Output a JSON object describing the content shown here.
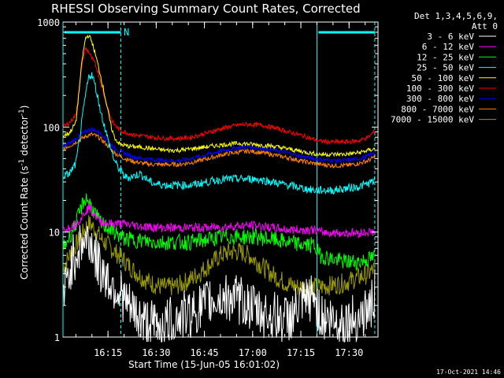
{
  "chart_data": {
    "type": "line",
    "title": "RHESSI Observing Summary Count Rates, Corrected",
    "xlabel": "Start Time (15-Jun-05 16:01:02)",
    "ylabel_prefix": "Corrected Count Rate (s",
    "ylabel_sup1": "-1",
    "ylabel_mid": " detector",
    "ylabel_sup2": "-1",
    "ylabel_suffix": ")",
    "x_range_min": [
      0,
      98
    ],
    "y_range_log": [
      1,
      1000
    ],
    "x_ticks": [
      {
        "value": 14,
        "label": "16:15"
      },
      {
        "value": 29,
        "label": "16:30"
      },
      {
        "value": 44,
        "label": "16:45"
      },
      {
        "value": 59,
        "label": "17:00"
      },
      {
        "value": 74,
        "label": "17:15"
      },
      {
        "value": 89,
        "label": "17:30"
      }
    ],
    "y_ticks": [
      {
        "value": 1,
        "label": "1"
      },
      {
        "value": 10,
        "label": "10"
      },
      {
        "value": 100,
        "label": "100"
      },
      {
        "value": 1000,
        "label": "1000"
      }
    ],
    "legend_header_1": "Det 1,3,4,5,6,9,",
    "legend_header_2": "Att 0",
    "annotations": {
      "night_start_marker": "N",
      "orbit_boundaries_min": [
        0,
        18,
        79,
        97
      ],
      "solid_boundary_style": [
        "solid",
        "dashed",
        "solid",
        "dashed"
      ],
      "bar_intervals_min": [
        [
          0,
          18
        ],
        [
          79,
          97
        ]
      ]
    },
    "series": [
      {
        "name": "3 - 6 keV",
        "color": "#ffffff",
        "x": [
          0,
          1,
          2,
          3,
          5,
          6,
          8,
          9,
          10,
          11,
          13,
          14,
          16,
          18,
          20,
          23,
          25,
          28,
          31,
          35,
          40,
          44,
          46,
          49,
          52,
          55,
          58,
          61,
          65,
          68,
          70,
          73,
          76,
          78,
          80,
          82,
          85,
          88,
          91,
          94,
          96,
          97
        ],
        "values": [
          2.5,
          3.0,
          4.2,
          5.5,
          7.0,
          8.0,
          8.5,
          7.5,
          6.0,
          4.8,
          4.0,
          3.5,
          3.0,
          2.6,
          2.0,
          1.6,
          1.4,
          1.3,
          1.3,
          1.5,
          1.7,
          2.0,
          2.2,
          2.3,
          2.4,
          2.2,
          2.0,
          1.7,
          1.6,
          1.5,
          1.5,
          1.8,
          2.2,
          2.5,
          1.6,
          1.5,
          1.4,
          1.4,
          1.5,
          1.7,
          2.0,
          2.6
        ]
      },
      {
        "name": "6 - 12 keV",
        "color": "#ff00ff",
        "x": [
          0,
          2,
          4,
          6,
          7,
          8,
          9,
          10,
          11,
          12,
          14,
          16,
          18,
          20,
          23,
          26,
          30,
          35,
          40,
          45,
          50,
          55,
          60,
          65,
          70,
          75,
          78,
          80,
          84,
          88,
          92,
          95,
          97
        ],
        "values": [
          10.5,
          11,
          12,
          14,
          16,
          17,
          16,
          14.5,
          13,
          12.5,
          12,
          12,
          12,
          11.8,
          11.5,
          11.2,
          11,
          11,
          11,
          11,
          11.2,
          11.5,
          11.5,
          11,
          10.5,
          10.5,
          10.5,
          10,
          9.8,
          9.8,
          9.8,
          10,
          10
        ]
      },
      {
        "name": "12 - 25 keV",
        "color": "#00ff00",
        "x": [
          0,
          2,
          4,
          6,
          7,
          8,
          9,
          10,
          11,
          12,
          14,
          16,
          18,
          20,
          24,
          28,
          32,
          36,
          40,
          45,
          50,
          55,
          60,
          65,
          70,
          75,
          78,
          80,
          84,
          88,
          92,
          95,
          97
        ],
        "values": [
          7,
          9,
          12,
          18,
          21,
          20,
          17,
          15,
          13,
          12,
          11,
          10,
          9,
          8.5,
          8.3,
          8,
          8,
          8,
          8,
          8.5,
          9,
          9,
          9,
          8.5,
          8,
          7.5,
          7.5,
          6,
          5.5,
          5.2,
          5.2,
          5.5,
          5.8
        ]
      },
      {
        "name": "25 - 50 keV",
        "color": "#00ffff",
        "x": [
          0,
          2,
          4,
          5,
          6,
          7,
          8,
          9,
          10,
          11,
          12,
          13,
          14,
          15,
          16,
          17,
          18,
          19,
          20,
          22,
          24,
          26,
          28,
          32,
          36,
          40,
          45,
          50,
          55,
          60,
          65,
          70,
          75,
          78,
          80,
          84,
          88,
          92,
          95,
          97
        ],
        "values": [
          34,
          36,
          45,
          70,
          120,
          200,
          300,
          320,
          250,
          180,
          130,
          100,
          75,
          60,
          48,
          42,
          38,
          34,
          33,
          34,
          36,
          32,
          29,
          28,
          28,
          28,
          30,
          32,
          32,
          32,
          30,
          28,
          26,
          25,
          25,
          25,
          26,
          27,
          29,
          31
        ]
      },
      {
        "name": "50 - 100 keV",
        "color": "#ffff00",
        "x": [
          0,
          2,
          4,
          5,
          6,
          7,
          8,
          9,
          10,
          11,
          12,
          13,
          14,
          15,
          16,
          17,
          18,
          20,
          22,
          25,
          28,
          32,
          36,
          40,
          45,
          50,
          55,
          60,
          65,
          70,
          75,
          78,
          80,
          84,
          88,
          92,
          95,
          97
        ],
        "values": [
          82,
          88,
          110,
          220,
          450,
          700,
          750,
          650,
          500,
          380,
          280,
          200,
          140,
          100,
          80,
          72,
          68,
          66,
          65,
          64,
          62,
          60,
          60,
          62,
          65,
          68,
          70,
          68,
          66,
          62,
          58,
          56,
          55,
          55,
          55,
          57,
          60,
          62
        ]
      },
      {
        "name": "100 - 300 keV",
        "color": "#ff0000",
        "x": [
          0,
          2,
          4,
          5,
          6,
          7,
          8,
          9,
          10,
          11,
          12,
          13,
          14,
          15,
          16,
          17,
          18,
          20,
          22,
          25,
          28,
          32,
          36,
          40,
          45,
          50,
          55,
          58,
          62,
          66,
          70,
          75,
          78,
          80,
          84,
          88,
          92,
          95,
          97
        ],
        "values": [
          100,
          110,
          130,
          230,
          420,
          560,
          520,
          450,
          400,
          330,
          250,
          190,
          150,
          120,
          105,
          98,
          92,
          88,
          84,
          82,
          80,
          78,
          78,
          80,
          88,
          98,
          105,
          106,
          104,
          98,
          90,
          82,
          76,
          73,
          72,
          72,
          74,
          80,
          92
        ]
      },
      {
        "name": "300 - 800 keV",
        "color": "#0000ff",
        "x": [
          0,
          2,
          4,
          6,
          7,
          8,
          9,
          10,
          11,
          12,
          13,
          14,
          15,
          16,
          18,
          20,
          22,
          25,
          28,
          32,
          36,
          40,
          45,
          50,
          55,
          58,
          62,
          66,
          70,
          75,
          78,
          80,
          84,
          88,
          92,
          95,
          97
        ],
        "values": [
          65,
          70,
          78,
          86,
          90,
          94,
          95,
          93,
          90,
          86,
          80,
          74,
          68,
          63,
          58,
          55,
          52,
          50,
          49,
          48,
          48,
          50,
          55,
          60,
          64,
          65,
          63,
          60,
          57,
          52,
          50,
          49,
          48,
          48,
          50,
          53,
          58
        ]
      },
      {
        "name": "800 - 7000 keV",
        "color": "#ff8000",
        "x": [
          0,
          2,
          4,
          6,
          7,
          8,
          9,
          10,
          11,
          12,
          13,
          14,
          15,
          16,
          18,
          20,
          22,
          25,
          28,
          32,
          36,
          40,
          45,
          50,
          55,
          58,
          62,
          66,
          70,
          75,
          78,
          80,
          84,
          88,
          92,
          95,
          97
        ],
        "values": [
          62,
          66,
          72,
          78,
          81,
          84,
          85,
          83,
          80,
          76,
          71,
          66,
          61,
          57,
          52,
          49,
          47,
          45,
          44,
          44,
          44,
          46,
          50,
          55,
          58,
          59,
          57,
          54,
          51,
          47,
          45,
          44,
          43,
          43,
          45,
          48,
          52
        ]
      },
      {
        "name": "7000 - 15000 keV",
        "color": "#999900",
        "x": [
          0,
          2,
          4,
          6,
          7,
          8,
          9,
          10,
          11,
          12,
          14,
          16,
          18,
          20,
          22,
          25,
          28,
          31,
          34,
          37,
          40,
          43,
          46,
          49,
          52,
          55,
          58,
          61,
          64,
          67,
          70,
          73,
          76,
          78,
          80,
          83,
          86,
          89,
          92,
          95,
          97
        ],
        "values": [
          4.5,
          6,
          7.5,
          9.5,
          11,
          12,
          11.5,
          10.5,
          9.5,
          8.5,
          7.5,
          6.5,
          5.8,
          5.0,
          4.3,
          3.6,
          3.2,
          3.0,
          3.0,
          3.2,
          3.6,
          4.2,
          5.0,
          6.0,
          6.5,
          6.5,
          6.0,
          5.0,
          4.2,
          3.6,
          3.2,
          3.0,
          3.0,
          3.0,
          3.0,
          3.1,
          3.2,
          3.4,
          3.7,
          4.0,
          4.5
        ]
      }
    ],
    "colors": {
      "background": "#000000",
      "frame": "#ffffff",
      "boundary": "#00ffff"
    }
  },
  "timestamp": "17-Oct-2021 14:46"
}
